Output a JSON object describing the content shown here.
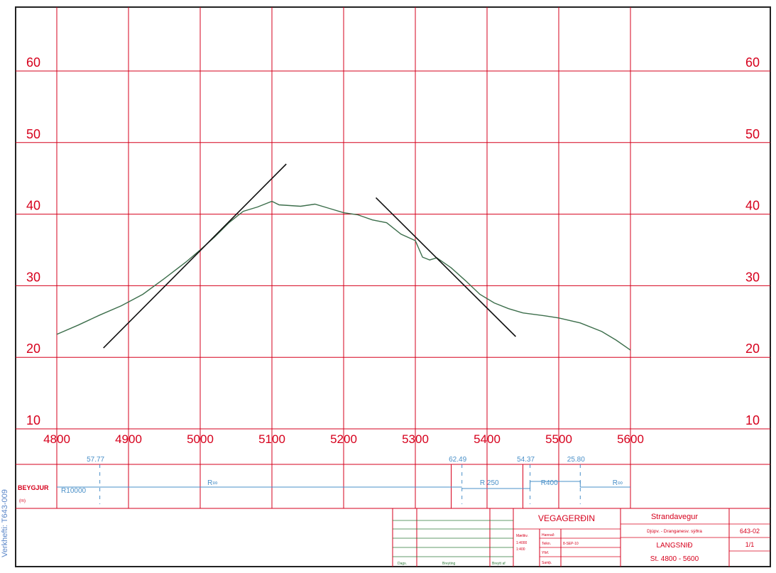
{
  "side_label": "Verkhefti: T643-009",
  "chart_data": {
    "type": "line",
    "title": "",
    "xlabel": "",
    "ylabel": "",
    "xlim": [
      4800,
      5600
    ],
    "ylim": [
      10,
      60
    ],
    "x_ticks": [
      4800,
      4900,
      5000,
      5100,
      5200,
      5300,
      5400,
      5500,
      5600
    ],
    "y_ticks": [
      10,
      20,
      30,
      40,
      50,
      60
    ],
    "grid": true,
    "series": [
      {
        "color": "#3c6e4b",
        "points": [
          [
            4800,
            23.2
          ],
          [
            4830,
            24.5
          ],
          [
            4860,
            25.9
          ],
          [
            4890,
            27.2
          ],
          [
            4920,
            28.8
          ],
          [
            4950,
            31.0
          ],
          [
            4980,
            33.3
          ],
          [
            5000,
            35.0
          ],
          [
            5020,
            36.8
          ],
          [
            5040,
            38.8
          ],
          [
            5060,
            40.4
          ],
          [
            5080,
            41.0
          ],
          [
            5100,
            41.8
          ],
          [
            5110,
            41.3
          ],
          [
            5140,
            41.1
          ],
          [
            5160,
            41.4
          ],
          [
            5180,
            40.8
          ],
          [
            5200,
            40.2
          ],
          [
            5220,
            39.9
          ],
          [
            5240,
            39.2
          ],
          [
            5260,
            38.8
          ],
          [
            5280,
            37.2
          ],
          [
            5300,
            36.3
          ],
          [
            5310,
            34.0
          ],
          [
            5320,
            33.6
          ],
          [
            5330,
            33.9
          ],
          [
            5350,
            32.5
          ],
          [
            5370,
            30.7
          ],
          [
            5390,
            28.8
          ],
          [
            5410,
            27.6
          ],
          [
            5430,
            26.8
          ],
          [
            5450,
            26.2
          ],
          [
            5480,
            25.8
          ],
          [
            5500,
            25.5
          ],
          [
            5530,
            24.8
          ],
          [
            5560,
            23.6
          ],
          [
            5580,
            22.4
          ],
          [
            5600,
            21.0
          ]
        ]
      },
      {
        "color": "#111111",
        "points": [
          [
            4865,
            21.3
          ],
          [
            5120,
            47.0
          ]
        ]
      },
      {
        "color": "#111111",
        "points": [
          [
            5245,
            42.3
          ],
          [
            5440,
            22.9
          ]
        ]
      }
    ]
  },
  "curvature": {
    "row_label": "BEYGJUR",
    "row_sublabel": "(m)",
    "station_labels": [
      {
        "station": 4860,
        "text": "57.77"
      },
      {
        "station": 5365,
        "text": "62.49"
      },
      {
        "station": 5460,
        "text": "54.37"
      },
      {
        "station": 5530,
        "text": "25.80"
      }
    ],
    "segment_labels": [
      {
        "station": 4806,
        "text": "R10000"
      },
      {
        "station": 5010,
        "text": "R∞"
      },
      {
        "station": 5390,
        "text": "R 250"
      },
      {
        "station": 5475,
        "text": "R400"
      },
      {
        "station": 5575,
        "text": "R∞"
      }
    ]
  },
  "title_block": {
    "org": "VEGAGERÐIN",
    "project": "Strandavegur",
    "subproject": "Djúpv. - Dranganesv. sýðra",
    "drawing_no": "643-02",
    "sheet_title": "LANGSNIÐ",
    "range": "St. 4800 - 5600",
    "sheet_count": "1/1",
    "scale_label": "Mælikv.",
    "scale_h": "1:4000",
    "scale_v": "1:400",
    "drawn_label": "Hannað",
    "date_label": "Teikn.",
    "date_value": "8-SEP-10",
    "checked_label": "Yfirf.",
    "approved_label": "Samþ.",
    "rev_date_label": "Dags.",
    "rev_change_label": "Breyting",
    "rev_by_label": "Breytt af"
  }
}
